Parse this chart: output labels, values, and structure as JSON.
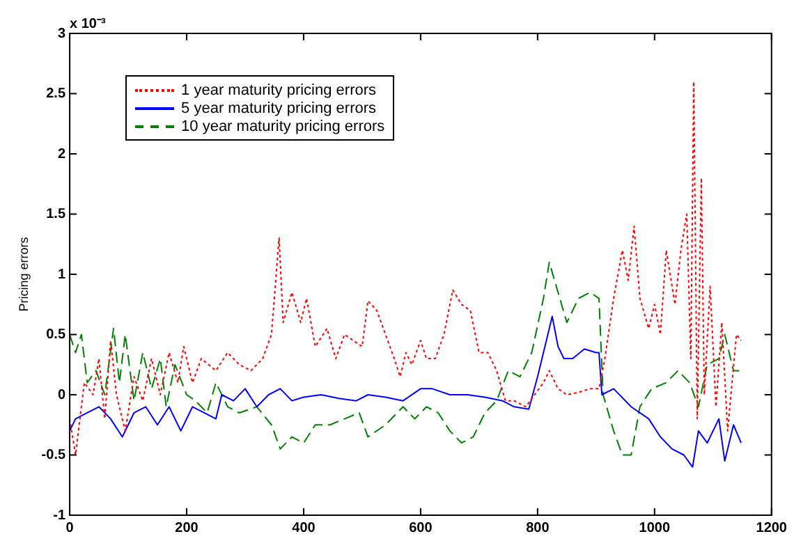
{
  "chart_data": {
    "type": "line",
    "ylabel": "Pricing errors",
    "annotations": [
      "x 10⁻³"
    ],
    "xlim": [
      0,
      1200
    ],
    "xticks": [
      0,
      200,
      400,
      600,
      800,
      1000,
      1200
    ],
    "ylim": [
      -1,
      3
    ],
    "yticks": [
      -1,
      -0.5,
      0,
      0.5,
      1,
      1.5,
      2,
      2.5,
      3
    ],
    "grid": false,
    "legend": "top left",
    "marker": "none",
    "series": [
      {
        "name": "1 year maturity pricing errors",
        "color": "#ff0000",
        "line_style": "dotted",
        "x": [
          0,
          10,
          15,
          25,
          40,
          50,
          60,
          70,
          80,
          95,
          110,
          125,
          140,
          155,
          170,
          185,
          195,
          210,
          225,
          250,
          270,
          290,
          310,
          330,
          345,
          358,
          365,
          380,
          395,
          405,
          420,
          440,
          455,
          470,
          485,
          500,
          510,
          525,
          540,
          555,
          565,
          575,
          585,
          600,
          610,
          625,
          640,
          655,
          670,
          685,
          700,
          715,
          730,
          745,
          760,
          780,
          795,
          810,
          820,
          835,
          850,
          870,
          890,
          905,
          915,
          930,
          945,
          955,
          965,
          975,
          990,
          1000,
          1010,
          1020,
          1035,
          1045,
          1055,
          1062,
          1067,
          1073,
          1080,
          1085,
          1095,
          1105,
          1115,
          1125,
          1140,
          1148
        ],
        "values": [
          -0.2,
          -0.5,
          -0.3,
          0.1,
          0,
          0.3,
          -0.2,
          0.45,
          0,
          -0.3,
          0.15,
          -0.05,
          0.3,
          0,
          0.35,
          0.1,
          0.4,
          0.1,
          0.3,
          0.2,
          0.35,
          0.25,
          0.2,
          0.3,
          0.5,
          1.3,
          0.6,
          0.85,
          0.6,
          0.8,
          0.4,
          0.55,
          0.3,
          0.5,
          0.45,
          0.4,
          0.78,
          0.7,
          0.5,
          0.3,
          0.15,
          0.35,
          0.25,
          0.45,
          0.3,
          0.3,
          0.5,
          0.87,
          0.75,
          0.7,
          0.35,
          0.35,
          0.2,
          -0.05,
          -0.05,
          -0.1,
          0,
          0.1,
          0.2,
          0.05,
          0,
          0.02,
          0.05,
          0.05,
          0.3,
          0.8,
          1.2,
          0.95,
          1.4,
          0.8,
          0.55,
          0.75,
          0.5,
          1.2,
          0.75,
          1.2,
          1.5,
          0.3,
          2.6,
          -0.2,
          1.8,
          0,
          0.9,
          -0.1,
          0.6,
          -0.3,
          0.5,
          0.45
        ]
      },
      {
        "name": "5 year maturity pricing errors",
        "color": "#0000ff",
        "line_style": "solid",
        "x": [
          0,
          10,
          30,
          50,
          70,
          90,
          110,
          130,
          150,
          170,
          190,
          210,
          230,
          250,
          260,
          280,
          300,
          320,
          340,
          360,
          380,
          400,
          430,
          460,
          490,
          510,
          540,
          570,
          600,
          620,
          650,
          680,
          710,
          740,
          760,
          785,
          800,
          815,
          825,
          835,
          845,
          860,
          880,
          900,
          905,
          910,
          930,
          960,
          990,
          1010,
          1030,
          1050,
          1065,
          1075,
          1090,
          1110,
          1120,
          1135,
          1148
        ],
        "values": [
          -0.3,
          -0.2,
          -0.15,
          -0.1,
          -0.2,
          -0.35,
          -0.15,
          -0.1,
          -0.25,
          -0.1,
          -0.3,
          -0.1,
          -0.15,
          -0.2,
          0,
          -0.05,
          0.05,
          -0.1,
          0,
          0.05,
          -0.05,
          -0.02,
          0,
          -0.03,
          -0.05,
          0,
          -0.02,
          -0.05,
          0.05,
          0.05,
          0,
          0,
          -0.02,
          -0.05,
          -0.1,
          -0.12,
          0.15,
          0.45,
          0.65,
          0.4,
          0.3,
          0.3,
          0.38,
          0.35,
          0.35,
          0,
          0.05,
          -0.1,
          -0.2,
          -0.35,
          -0.45,
          -0.5,
          -0.6,
          -0.3,
          -0.4,
          -0.2,
          -0.55,
          -0.25,
          -0.4
        ]
      },
      {
        "name": "10 year maturity pricing errors",
        "color": "#008000",
        "line_style": "dashed",
        "x": [
          0,
          10,
          20,
          30,
          45,
          60,
          75,
          85,
          95,
          110,
          125,
          140,
          155,
          165,
          180,
          200,
          215,
          235,
          250,
          270,
          290,
          320,
          345,
          360,
          380,
          400,
          420,
          445,
          470,
          495,
          510,
          540,
          570,
          590,
          610,
          630,
          650,
          670,
          690,
          710,
          730,
          750,
          770,
          790,
          810,
          820,
          835,
          850,
          870,
          890,
          905,
          912,
          930,
          945,
          960,
          975,
          995,
          1020,
          1040,
          1060,
          1075,
          1090,
          1110,
          1120,
          1135,
          1145
        ],
        "values": [
          0.5,
          0.35,
          0.5,
          0.1,
          0.2,
          0,
          0.55,
          0.1,
          0.5,
          -0.05,
          0.35,
          0.05,
          0.3,
          -0.1,
          0.25,
          0,
          -0.05,
          -0.15,
          0.1,
          -0.1,
          -0.15,
          -0.1,
          -0.25,
          -0.45,
          -0.35,
          -0.4,
          -0.25,
          -0.25,
          -0.2,
          -0.15,
          -0.35,
          -0.25,
          -0.1,
          -0.2,
          -0.1,
          -0.15,
          -0.3,
          -0.4,
          -0.35,
          -0.15,
          -0.05,
          0.2,
          0.15,
          0.35,
          0.8,
          1.1,
          0.85,
          0.6,
          0.8,
          0.85,
          0.8,
          0,
          -0.3,
          -0.5,
          -0.5,
          -0.1,
          0.05,
          0.1,
          0.2,
          0.1,
          -0.1,
          0.25,
          0.3,
          0.5,
          0.2,
          0.2
        ]
      }
    ]
  }
}
